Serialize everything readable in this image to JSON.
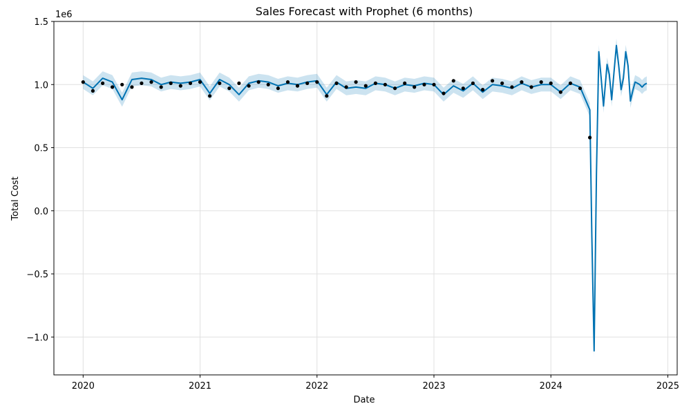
{
  "chart_data": {
    "type": "line",
    "title": "Sales Forecast with Prophet (6 months)",
    "xlabel": "Date",
    "ylabel": "Total Cost",
    "y_scale_label": "1e6",
    "x_ticks": [
      "2020",
      "2021",
      "2022",
      "2023",
      "2024",
      "2025"
    ],
    "y_ticks": [
      "−1.0",
      "−0.5",
      "0.0",
      "0.5",
      "1.0",
      "1.5"
    ],
    "y_tick_values": [
      -1.0,
      -0.5,
      0.0,
      0.5,
      1.0,
      1.5
    ],
    "xlim": [
      2019.75,
      2025.08
    ],
    "ylim": [
      -1.3,
      1.5
    ],
    "grid": true,
    "colors": {
      "forecast_line": "#0072b2",
      "interval_band": "#0072b2",
      "observed_points": "#000000",
      "grid": "#e0e0e0"
    },
    "series": [
      {
        "kind": "observed",
        "x": [
          2020.0,
          2020.083,
          2020.167,
          2020.25,
          2020.333,
          2020.417,
          2020.5,
          2020.583,
          2020.667,
          2020.75,
          2020.833,
          2020.917,
          2021.0,
          2021.083,
          2021.167,
          2021.25,
          2021.333,
          2021.417,
          2021.5,
          2021.583,
          2021.667,
          2021.75,
          2021.833,
          2021.917,
          2022.0,
          2022.083,
          2022.167,
          2022.25,
          2022.333,
          2022.417,
          2022.5,
          2022.583,
          2022.667,
          2022.75,
          2022.833,
          2022.917,
          2023.0,
          2023.083,
          2023.167,
          2023.25,
          2023.333,
          2023.417,
          2023.5,
          2023.583,
          2023.667,
          2023.75,
          2023.833,
          2023.917,
          2024.0,
          2024.083,
          2024.167,
          2024.25,
          2024.333
        ],
        "y": [
          1.02,
          0.95,
          1.01,
          0.98,
          1.0,
          0.98,
          1.01,
          1.02,
          0.98,
          1.01,
          0.99,
          1.01,
          1.02,
          0.91,
          1.01,
          0.97,
          1.01,
          0.99,
          1.02,
          1.0,
          0.97,
          1.02,
          0.99,
          1.01,
          1.02,
          0.91,
          1.01,
          0.98,
          1.02,
          0.99,
          1.01,
          1.0,
          0.97,
          1.01,
          0.98,
          1.0,
          1.0,
          0.93,
          1.03,
          0.97,
          1.01,
          0.96,
          1.03,
          1.01,
          0.98,
          1.02,
          0.98,
          1.02,
          1.01,
          0.94,
          1.01,
          0.97,
          0.58
        ]
      },
      {
        "kind": "forecast",
        "x": [
          2020.0,
          2020.083,
          2020.167,
          2020.25,
          2020.333,
          2020.417,
          2020.5,
          2020.583,
          2020.667,
          2020.75,
          2020.833,
          2020.917,
          2021.0,
          2021.083,
          2021.167,
          2021.25,
          2021.333,
          2021.417,
          2021.5,
          2021.583,
          2021.667,
          2021.75,
          2021.833,
          2021.917,
          2022.0,
          2022.083,
          2022.167,
          2022.25,
          2022.333,
          2022.417,
          2022.5,
          2022.583,
          2022.667,
          2022.75,
          2022.833,
          2022.917,
          2023.0,
          2023.083,
          2023.167,
          2023.25,
          2023.333,
          2023.417,
          2023.5,
          2023.583,
          2023.667,
          2023.75,
          2023.833,
          2023.917,
          2024.0,
          2024.083,
          2024.167,
          2024.25,
          2024.333,
          2024.35,
          2024.37,
          2024.39,
          2024.41,
          2024.43,
          2024.45,
          2024.48,
          2024.5,
          2024.52,
          2024.54,
          2024.56,
          2024.58,
          2024.6,
          2024.62,
          2024.64,
          2024.66,
          2024.68,
          2024.7,
          2024.72,
          2024.74,
          2024.76,
          2024.78,
          2024.8,
          2024.82
        ],
        "y": [
          1.02,
          0.97,
          1.05,
          1.02,
          0.88,
          1.04,
          1.05,
          1.04,
          1.0,
          1.02,
          1.01,
          1.02,
          1.04,
          0.93,
          1.04,
          1.0,
          0.92,
          1.01,
          1.03,
          1.02,
          0.99,
          1.01,
          1.0,
          1.02,
          1.03,
          0.92,
          1.02,
          0.97,
          0.98,
          0.97,
          1.01,
          1.0,
          0.97,
          1.0,
          0.99,
          1.01,
          1.0,
          0.92,
          0.99,
          0.95,
          1.01,
          0.94,
          1.0,
          0.99,
          0.97,
          1.01,
          0.98,
          1.0,
          1.0,
          0.94,
          1.01,
          0.98,
          0.8,
          -0.2,
          -1.11,
          0.3,
          1.26,
          1.05,
          0.83,
          1.16,
          1.08,
          0.88,
          1.1,
          1.31,
          1.15,
          0.96,
          1.05,
          1.26,
          1.15,
          0.87,
          0.95,
          1.02,
          1.01,
          1.0,
          0.98,
          1.0,
          1.01
        ]
      }
    ],
    "interval_half_width": 0.055
  }
}
